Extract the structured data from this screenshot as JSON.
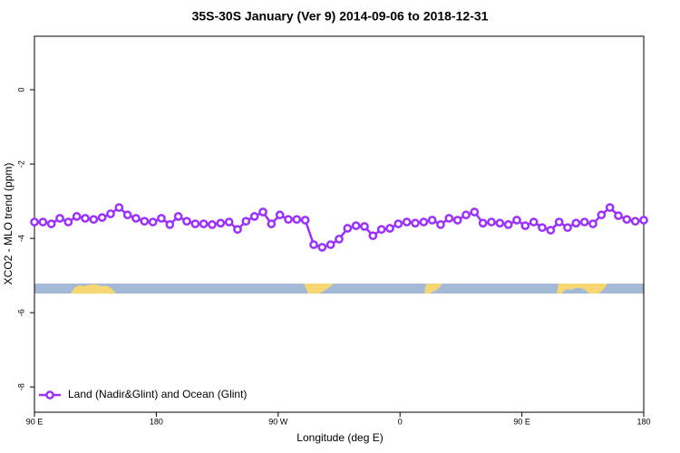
{
  "chart_data": {
    "type": "line",
    "title": "35S-30S January (Ver 9)   2014-09-06 to 2018-12-31",
    "x_label": "Longitude (deg E)",
    "y_label": "XCO2 - MLO trend (ppm)",
    "xlim": [
      90,
      540
    ],
    "ylim": [
      -8.68,
      1.44
    ],
    "xticks": [
      {
        "value": 90,
        "label": "90 E"
      },
      180,
      {
        "value": 270,
        "label": "90 W"
      },
      {
        "value": 360,
        "label": "0"
      },
      {
        "value": 450,
        "label": "90 E"
      },
      {
        "value": 540,
        "label": "180"
      }
    ],
    "yticks": [
      0,
      -2,
      -4,
      -6,
      -8
    ],
    "grid": false,
    "legend": "lower left",
    "x": [
      90,
      96.25,
      102.5,
      108.75,
      115,
      121.25,
      127.5,
      133.75,
      140,
      146.25,
      152.5,
      158.75,
      165,
      171.25,
      177.5,
      183.75,
      190,
      196.25,
      202.5,
      208.75,
      215,
      221.25,
      227.5,
      233.75,
      240,
      246.25,
      252.5,
      258.75,
      265,
      271.25,
      277.5,
      283.75,
      290,
      296.25,
      302.5,
      308.75,
      315,
      321.25,
      327.5,
      333.75,
      340,
      346.25,
      352.5,
      358.75,
      365,
      371.25,
      377.5,
      383.75,
      390,
      396.25,
      402.5,
      408.75,
      415,
      421.25,
      427.5,
      433.75,
      440,
      446.25,
      452.5,
      458.75,
      465,
      471.25,
      477.5,
      483.75,
      490,
      496.25,
      502.5,
      508.75,
      515,
      521.25,
      527.5,
      533.75,
      540
    ],
    "series": [
      {
        "name": "Land (Nadir&Glint) and Ocean (Glint)",
        "color": "#9b30ff",
        "values": [
          -3.56,
          -3.56,
          -3.61,
          -3.46,
          -3.56,
          -3.41,
          -3.46,
          -3.49,
          -3.44,
          -3.34,
          -3.17,
          -3.37,
          -3.46,
          -3.54,
          -3.56,
          -3.46,
          -3.63,
          -3.41,
          -3.54,
          -3.61,
          -3.61,
          -3.63,
          -3.59,
          -3.56,
          -3.76,
          -3.54,
          -3.41,
          -3.29,
          -3.61,
          -3.37,
          -3.49,
          -3.49,
          -3.51,
          -4.17,
          -4.24,
          -4.17,
          -4.02,
          -3.73,
          -3.66,
          -3.68,
          -3.93,
          -3.76,
          -3.73,
          -3.61,
          -3.56,
          -3.59,
          -3.56,
          -3.51,
          -3.63,
          -3.46,
          -3.51,
          -3.37,
          -3.29,
          -3.59,
          -3.56,
          -3.59,
          -3.63,
          -3.51,
          -3.66,
          -3.56,
          -3.71,
          -3.78,
          -3.56,
          -3.71,
          -3.59,
          -3.56,
          -3.61,
          -3.37,
          -3.17,
          -3.39,
          -3.49,
          -3.54,
          -3.51
        ]
      }
    ]
  }
}
